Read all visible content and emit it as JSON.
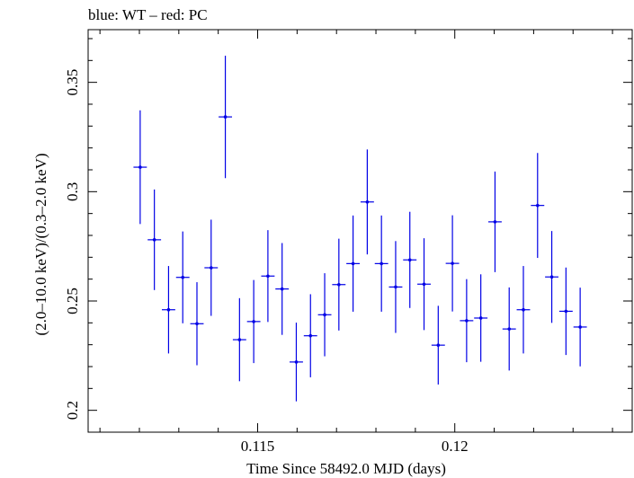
{
  "chart_data": {
    "type": "scatter",
    "title": "blue: WT – red: PC",
    "xlabel": "Time Since 58492.0 MJD (days)",
    "ylabel": "(2.0–10.0 keV)/(0.3–2.0 keV)",
    "xlim": [
      0.1107,
      0.1245
    ],
    "ylim": [
      0.19,
      0.3741
    ],
    "x_ticks": [
      0.115,
      0.12
    ],
    "x_tick_labels": [
      "0.115",
      "0.12"
    ],
    "y_ticks": [
      0.2,
      0.25,
      0.3,
      0.35
    ],
    "y_tick_labels": [
      "0.2",
      "0.25",
      "0.3",
      "0.35"
    ],
    "grid": false,
    "series": [
      {
        "name": "WT",
        "color": "#0000e6",
        "x_half_width": 0.00017,
        "points": [
          {
            "x": 0.11202,
            "y": 0.3112,
            "err": 0.026
          },
          {
            "x": 0.11238,
            "y": 0.278,
            "err": 0.023
          },
          {
            "x": 0.11274,
            "y": 0.246,
            "err": 0.02
          },
          {
            "x": 0.1131,
            "y": 0.2608,
            "err": 0.021
          },
          {
            "x": 0.11346,
            "y": 0.2396,
            "err": 0.019
          },
          {
            "x": 0.11382,
            "y": 0.2652,
            "err": 0.022
          },
          {
            "x": 0.11418,
            "y": 0.3342,
            "err": 0.028
          },
          {
            "x": 0.11454,
            "y": 0.2323,
            "err": 0.019
          },
          {
            "x": 0.1149,
            "y": 0.2406,
            "err": 0.019
          },
          {
            "x": 0.11526,
            "y": 0.2614,
            "err": 0.021
          },
          {
            "x": 0.11562,
            "y": 0.2555,
            "err": 0.021
          },
          {
            "x": 0.11598,
            "y": 0.2221,
            "err": 0.018
          },
          {
            "x": 0.11634,
            "y": 0.2341,
            "err": 0.019
          },
          {
            "x": 0.1167,
            "y": 0.2437,
            "err": 0.019
          },
          {
            "x": 0.11706,
            "y": 0.2575,
            "err": 0.021
          },
          {
            "x": 0.11742,
            "y": 0.2671,
            "err": 0.022
          },
          {
            "x": 0.11778,
            "y": 0.2953,
            "err": 0.024
          },
          {
            "x": 0.11814,
            "y": 0.2671,
            "err": 0.022
          },
          {
            "x": 0.1185,
            "y": 0.2564,
            "err": 0.021
          },
          {
            "x": 0.11886,
            "y": 0.2688,
            "err": 0.022
          },
          {
            "x": 0.11922,
            "y": 0.2577,
            "err": 0.021
          },
          {
            "x": 0.11958,
            "y": 0.2298,
            "err": 0.018
          },
          {
            "x": 0.11994,
            "y": 0.2672,
            "err": 0.022
          },
          {
            "x": 0.1203,
            "y": 0.241,
            "err": 0.019
          },
          {
            "x": 0.12066,
            "y": 0.2422,
            "err": 0.02
          },
          {
            "x": 0.12102,
            "y": 0.2862,
            "err": 0.023
          },
          {
            "x": 0.12138,
            "y": 0.2372,
            "err": 0.019
          },
          {
            "x": 0.12174,
            "y": 0.246,
            "err": 0.02
          },
          {
            "x": 0.1221,
            "y": 0.2937,
            "err": 0.024
          },
          {
            "x": 0.12246,
            "y": 0.261,
            "err": 0.021
          },
          {
            "x": 0.12282,
            "y": 0.2453,
            "err": 0.02
          },
          {
            "x": 0.12318,
            "y": 0.2381,
            "err": 0.018
          }
        ]
      }
    ]
  }
}
